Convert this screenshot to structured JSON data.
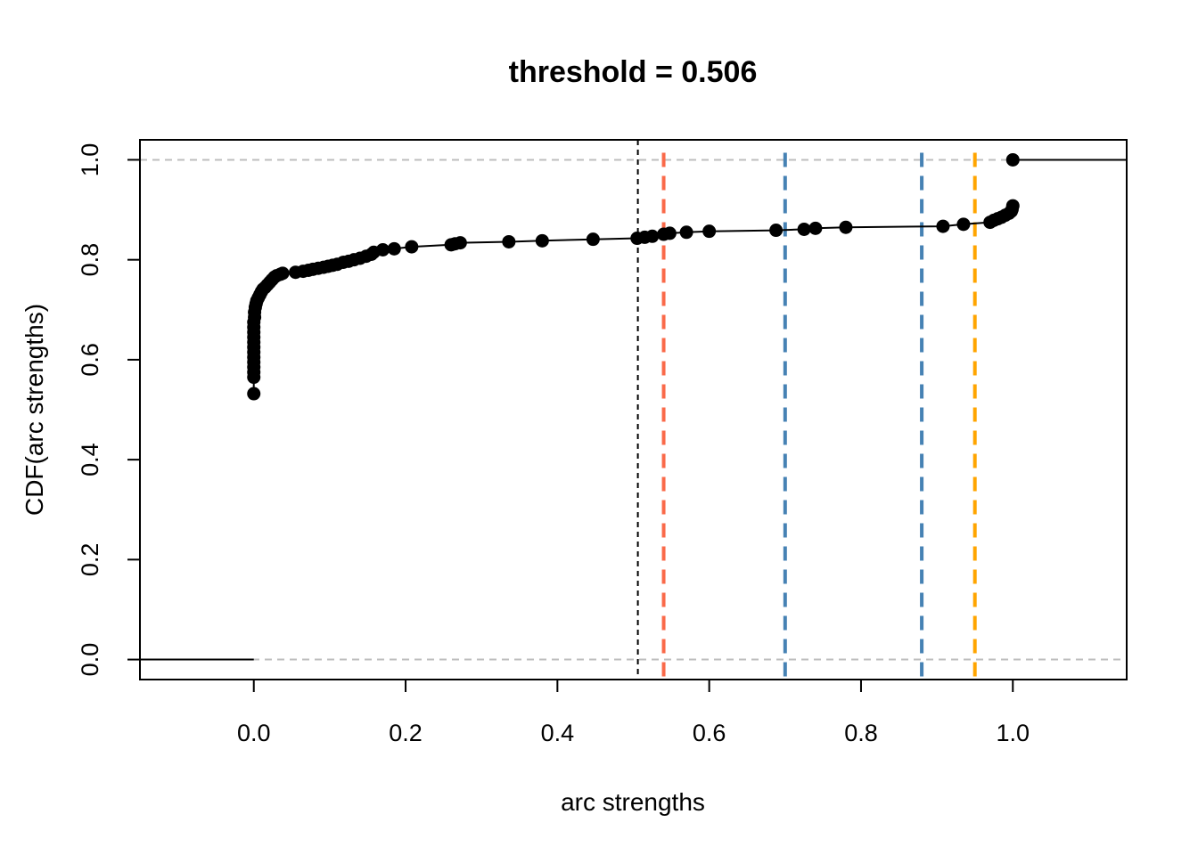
{
  "chart_data": {
    "type": "scatter",
    "title": "threshold =  0.506",
    "xlabel": "arc strengths",
    "ylabel": "CDF(arc strengths)",
    "xlim": [
      -0.15,
      1.15
    ],
    "ylim": [
      -0.04,
      1.04
    ],
    "xticks": [
      {
        "value": 0.0,
        "label": "0.0"
      },
      {
        "value": 0.2,
        "label": "0.2"
      },
      {
        "value": 0.4,
        "label": "0.4"
      },
      {
        "value": 0.6,
        "label": "0.6"
      },
      {
        "value": 0.8,
        "label": "0.8"
      },
      {
        "value": 1.0,
        "label": "1.0"
      }
    ],
    "yticks": [
      {
        "value": 0.0,
        "label": "0.0"
      },
      {
        "value": 0.2,
        "label": "0.2"
      },
      {
        "value": 0.4,
        "label": "0.4"
      },
      {
        "value": 0.6,
        "label": "0.6"
      },
      {
        "value": 0.8,
        "label": "0.8"
      },
      {
        "value": 1.0,
        "label": "1.0"
      }
    ],
    "grid": false,
    "horizontal_reference_lines": [
      {
        "y": 0.0,
        "color": "#bebebe"
      },
      {
        "y": 1.0,
        "color": "#bebebe"
      }
    ],
    "threshold": {
      "x": 0.506,
      "color": "#000000"
    },
    "vertical_markers": [
      {
        "x": 0.54,
        "color": "#fa6a4a"
      },
      {
        "x": 0.7,
        "color": "#4682b4"
      },
      {
        "x": 0.88,
        "color": "#4682b4"
      },
      {
        "x": 0.95,
        "color": "#ffa500"
      }
    ],
    "step_left": {
      "from": -0.15,
      "to": 0.0,
      "y": 0.0
    },
    "step_right": {
      "from": 1.0,
      "to": 1.15,
      "y": 1.0
    },
    "series": [
      {
        "points": [
          [
            0.0,
            0.532
          ],
          [
            0.0,
            0.565
          ],
          [
            0.0,
            0.575
          ],
          [
            0.0,
            0.585
          ],
          [
            0.0,
            0.595
          ],
          [
            0.0,
            0.605
          ],
          [
            0.0,
            0.615
          ],
          [
            0.0,
            0.625
          ],
          [
            0.0,
            0.635
          ],
          [
            0.0,
            0.645
          ],
          [
            0.0,
            0.655
          ],
          [
            0.0,
            0.665
          ],
          [
            0.0,
            0.675
          ],
          [
            0.001,
            0.685
          ],
          [
            0.001,
            0.695
          ],
          [
            0.002,
            0.705
          ],
          [
            0.003,
            0.712
          ],
          [
            0.004,
            0.718
          ],
          [
            0.006,
            0.724
          ],
          [
            0.008,
            0.73
          ],
          [
            0.01,
            0.736
          ],
          [
            0.012,
            0.741
          ],
          [
            0.015,
            0.745
          ],
          [
            0.018,
            0.75
          ],
          [
            0.021,
            0.755
          ],
          [
            0.024,
            0.76
          ],
          [
            0.027,
            0.765
          ],
          [
            0.03,
            0.768
          ],
          [
            0.035,
            0.771
          ],
          [
            0.038,
            0.773
          ],
          [
            0.055,
            0.775
          ],
          [
            0.065,
            0.777
          ],
          [
            0.072,
            0.779
          ],
          [
            0.078,
            0.781
          ],
          [
            0.085,
            0.783
          ],
          [
            0.092,
            0.785
          ],
          [
            0.098,
            0.787
          ],
          [
            0.104,
            0.789
          ],
          [
            0.11,
            0.791
          ],
          [
            0.118,
            0.795
          ],
          [
            0.125,
            0.797
          ],
          [
            0.132,
            0.8
          ],
          [
            0.14,
            0.803
          ],
          [
            0.148,
            0.807
          ],
          [
            0.155,
            0.811
          ],
          [
            0.158,
            0.815
          ],
          [
            0.17,
            0.82
          ],
          [
            0.185,
            0.822
          ],
          [
            0.208,
            0.826
          ],
          [
            0.26,
            0.83
          ],
          [
            0.265,
            0.832
          ],
          [
            0.272,
            0.834
          ],
          [
            0.336,
            0.836
          ],
          [
            0.38,
            0.838
          ],
          [
            0.447,
            0.841
          ],
          [
            0.505,
            0.843
          ],
          [
            0.515,
            0.845
          ],
          [
            0.525,
            0.847
          ],
          [
            0.54,
            0.851
          ],
          [
            0.548,
            0.853
          ],
          [
            0.57,
            0.855
          ],
          [
            0.6,
            0.857
          ],
          [
            0.688,
            0.859
          ],
          [
            0.725,
            0.861
          ],
          [
            0.74,
            0.863
          ],
          [
            0.78,
            0.865
          ],
          [
            0.908,
            0.867
          ],
          [
            0.935,
            0.871
          ],
          [
            0.97,
            0.875
          ],
          [
            0.975,
            0.879
          ],
          [
            0.98,
            0.882
          ],
          [
            0.985,
            0.885
          ],
          [
            0.99,
            0.889
          ],
          [
            0.995,
            0.893
          ],
          [
            0.998,
            0.897
          ],
          [
            0.999,
            0.901
          ],
          [
            1.0,
            0.908
          ],
          [
            1.0,
            1.0
          ]
        ]
      }
    ]
  }
}
